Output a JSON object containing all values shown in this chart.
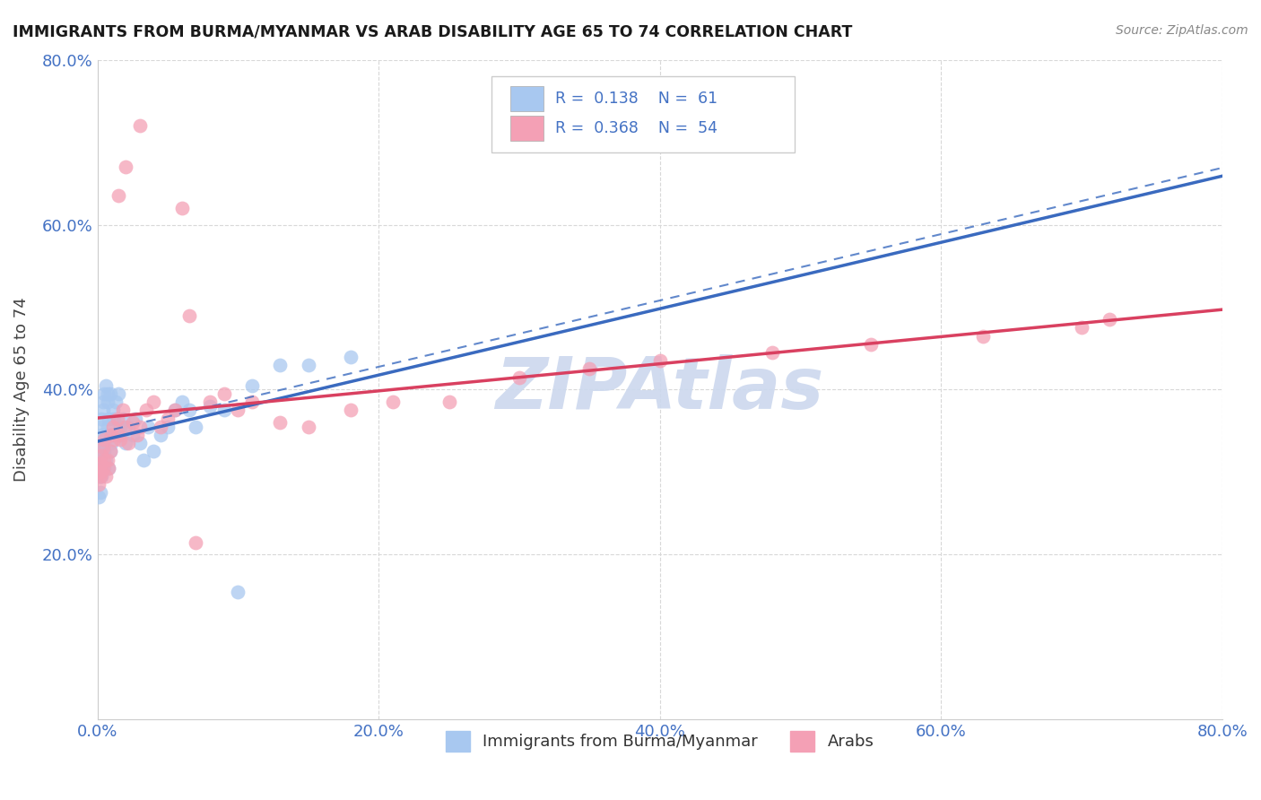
{
  "title": "IMMIGRANTS FROM BURMA/MYANMAR VS ARAB DISABILITY AGE 65 TO 74 CORRELATION CHART",
  "source": "Source: ZipAtlas.com",
  "ylabel": "Disability Age 65 to 74",
  "legend_label1": "Immigrants from Burma/Myanmar",
  "legend_label2": "Arabs",
  "R1": 0.138,
  "N1": 61,
  "R2": 0.368,
  "N2": 54,
  "xlim": [
    0.0,
    0.8
  ],
  "ylim": [
    0.0,
    0.8
  ],
  "color1": "#a8c8f0",
  "color2": "#f4a0b5",
  "regression_color1": "#3a6abf",
  "regression_color2": "#d94060",
  "background_color": "#ffffff",
  "grid_color": "#d8d8d8",
  "watermark_color": "#ccd8ee",
  "blue_scatter_x": [
    0.001,
    0.001,
    0.001,
    0.002,
    0.002,
    0.002,
    0.002,
    0.003,
    0.003,
    0.003,
    0.003,
    0.003,
    0.004,
    0.004,
    0.004,
    0.004,
    0.005,
    0.005,
    0.005,
    0.005,
    0.006,
    0.006,
    0.006,
    0.007,
    0.007,
    0.007,
    0.008,
    0.008,
    0.009,
    0.009,
    0.01,
    0.01,
    0.011,
    0.012,
    0.013,
    0.014,
    0.015,
    0.016,
    0.017,
    0.018,
    0.02,
    0.022,
    0.025,
    0.027,
    0.03,
    0.033,
    0.036,
    0.04,
    0.045,
    0.05,
    0.055,
    0.06,
    0.065,
    0.07,
    0.08,
    0.09,
    0.1,
    0.11,
    0.13,
    0.15,
    0.18
  ],
  "blue_scatter_y": [
    0.295,
    0.305,
    0.27,
    0.315,
    0.295,
    0.275,
    0.355,
    0.33,
    0.295,
    0.345,
    0.365,
    0.32,
    0.385,
    0.325,
    0.375,
    0.305,
    0.395,
    0.335,
    0.305,
    0.325,
    0.405,
    0.345,
    0.315,
    0.355,
    0.385,
    0.395,
    0.365,
    0.305,
    0.395,
    0.325,
    0.345,
    0.335,
    0.375,
    0.365,
    0.385,
    0.345,
    0.395,
    0.355,
    0.345,
    0.365,
    0.335,
    0.355,
    0.345,
    0.365,
    0.335,
    0.315,
    0.355,
    0.325,
    0.345,
    0.355,
    0.375,
    0.385,
    0.375,
    0.355,
    0.38,
    0.375,
    0.155,
    0.405,
    0.43,
    0.43,
    0.44
  ],
  "pink_scatter_x": [
    0.001,
    0.001,
    0.002,
    0.002,
    0.003,
    0.003,
    0.004,
    0.004,
    0.005,
    0.005,
    0.006,
    0.007,
    0.008,
    0.009,
    0.01,
    0.011,
    0.012,
    0.014,
    0.015,
    0.016,
    0.018,
    0.02,
    0.022,
    0.025,
    0.028,
    0.03,
    0.035,
    0.04,
    0.045,
    0.05,
    0.055,
    0.065,
    0.07,
    0.08,
    0.09,
    0.1,
    0.11,
    0.13,
    0.15,
    0.18,
    0.21,
    0.25,
    0.3,
    0.35,
    0.4,
    0.48,
    0.55,
    0.63,
    0.7,
    0.72,
    0.015,
    0.02,
    0.03,
    0.06
  ],
  "pink_scatter_y": [
    0.3,
    0.285,
    0.31,
    0.295,
    0.32,
    0.3,
    0.33,
    0.305,
    0.34,
    0.315,
    0.295,
    0.315,
    0.305,
    0.325,
    0.345,
    0.355,
    0.34,
    0.365,
    0.345,
    0.34,
    0.375,
    0.355,
    0.335,
    0.36,
    0.345,
    0.355,
    0.375,
    0.385,
    0.355,
    0.365,
    0.375,
    0.49,
    0.215,
    0.385,
    0.395,
    0.375,
    0.385,
    0.36,
    0.355,
    0.375,
    0.385,
    0.385,
    0.415,
    0.425,
    0.435,
    0.445,
    0.455,
    0.465,
    0.475,
    0.485,
    0.635,
    0.67,
    0.72,
    0.62
  ]
}
